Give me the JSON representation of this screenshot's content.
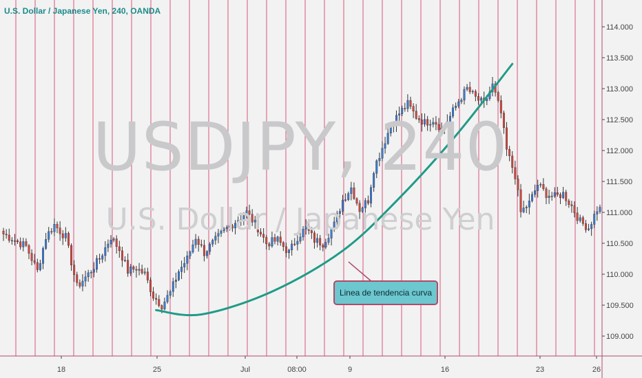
{
  "header": {
    "title": "U.S. Dollar / Japanese Yen, 240, OANDA"
  },
  "watermark": {
    "symbol": "USDJPY, 240",
    "description": "U.S. Dollar / Japanese Yen"
  },
  "colors": {
    "background": "#f2f2f2",
    "up": "#3b7bd4",
    "down": "#d6453e",
    "wick": "#333333",
    "grid_vertical": "#d8547a",
    "trend_curve": "#1f9b87",
    "annotation_bg": "#6cc7cf",
    "annotation_border": "#b04a6a",
    "axis_text": "#444444"
  },
  "chart_data": {
    "type": "candlestick",
    "title": "U.S. Dollar / Japanese Yen, 240, OANDA",
    "ylim": [
      108.75,
      114.25
    ],
    "y_ticks": [
      "114.000",
      "113.500",
      "113.000",
      "112.500",
      "112.000",
      "111.500",
      "111.000",
      "110.500",
      "110.000",
      "109.500",
      "109.000"
    ],
    "x_ticks": [
      "18",
      "25",
      "Jul",
      "08:00",
      "9",
      "16",
      "23",
      "26"
    ],
    "grid": "vertical",
    "close_path": [
      [
        0,
        110.65
      ],
      [
        8,
        110.45
      ],
      [
        12,
        110.05
      ],
      [
        15,
        110.6
      ],
      [
        18,
        110.8
      ],
      [
        22,
        110.6
      ],
      [
        26,
        109.8
      ],
      [
        30,
        110.0
      ],
      [
        34,
        110.25
      ],
      [
        38,
        110.6
      ],
      [
        41,
        110.4
      ],
      [
        44,
        110.05
      ],
      [
        47,
        110.1
      ],
      [
        50,
        110.0
      ],
      [
        53,
        109.65
      ],
      [
        56,
        109.5
      ],
      [
        59,
        109.7
      ],
      [
        62,
        110.05
      ],
      [
        65,
        110.25
      ],
      [
        68,
        110.6
      ],
      [
        71,
        110.35
      ],
      [
        74,
        110.5
      ],
      [
        78,
        110.7
      ],
      [
        82,
        110.85
      ],
      [
        86,
        111.0
      ],
      [
        90,
        110.75
      ],
      [
        93,
        110.5
      ],
      [
        97,
        110.55
      ],
      [
        101,
        110.35
      ],
      [
        104,
        110.6
      ],
      [
        107,
        110.75
      ],
      [
        110,
        110.55
      ],
      [
        113,
        110.5
      ],
      [
        117,
        110.8
      ],
      [
        120,
        111.2
      ],
      [
        123,
        111.4
      ],
      [
        126,
        111.05
      ],
      [
        129,
        111.2
      ],
      [
        131,
        111.7
      ],
      [
        134,
        112.05
      ],
      [
        137,
        112.4
      ],
      [
        140,
        112.6
      ],
      [
        143,
        112.75
      ],
      [
        146,
        112.55
      ],
      [
        149,
        112.45
      ],
      [
        152,
        112.5
      ],
      [
        155,
        112.35
      ],
      [
        158,
        112.55
      ],
      [
        161,
        112.8
      ],
      [
        164,
        113.0
      ],
      [
        167,
        112.85
      ],
      [
        170,
        112.75
      ],
      [
        173,
        113.05
      ],
      [
        176,
        112.6
      ],
      [
        178,
        112.0
      ],
      [
        181,
        111.6
      ],
      [
        183,
        111.0
      ],
      [
        186,
        111.15
      ],
      [
        189,
        111.45
      ],
      [
        192,
        111.3
      ],
      [
        195,
        111.25
      ],
      [
        198,
        111.3
      ],
      [
        201,
        111.1
      ],
      [
        204,
        110.85
      ],
      [
        207,
        110.75
      ],
      [
        210,
        111.05
      ]
    ],
    "trend_curve": {
      "label": "Linea de tendencia curva",
      "points": [
        [
          54,
          109.42
        ],
        [
          70,
          109.35
        ],
        [
          95,
          109.72
        ],
        [
          120,
          110.38
        ],
        [
          140,
          111.23
        ],
        [
          160,
          112.24
        ],
        [
          180,
          113.4
        ]
      ]
    }
  }
}
